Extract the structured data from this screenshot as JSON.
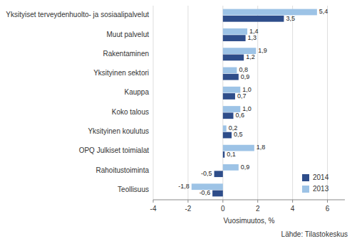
{
  "chart_data": {
    "type": "bar",
    "orientation": "horizontal",
    "categories": [
      "Yksityiset terveydenhuolto- ja sosiaalipalvelut",
      "Muut palvelut",
      "Rakentaminen",
      "Yksityinen sektori",
      "Kauppa",
      "Koko talous",
      "Yksityinen koulutus",
      "OPQ Julkiset toimialat",
      "Rahoitustoiminta",
      "Teollisuus"
    ],
    "series": [
      {
        "name": "2014",
        "color": "#2E4D8A",
        "values": [
          3.5,
          1.3,
          1.2,
          0.9,
          0.7,
          0.6,
          0.5,
          0.1,
          -0.5,
          -0.6
        ],
        "value_labels": [
          "3,5",
          "1,3",
          "1,2",
          "0,9",
          "0,7",
          "0,6",
          "0,5",
          "0,1",
          "-0,5",
          "-0,6"
        ]
      },
      {
        "name": "2013",
        "color": "#9DC3E6",
        "values": [
          5.4,
          1.4,
          1.9,
          0.8,
          1.0,
          1.0,
          0.2,
          1.8,
          0.9,
          -1.8
        ],
        "value_labels": [
          "5,4",
          "1,4",
          "1,9",
          "0,8",
          "1,0",
          "1,0",
          "0,2",
          "1,8",
          "0,9",
          "-1,8"
        ]
      }
    ],
    "xlabel": "Vuosimuutos,  %",
    "xlim": [
      -4,
      7
    ],
    "xticks": [
      -4,
      -2,
      0,
      2,
      4,
      6
    ],
    "grid": true,
    "legend": "lower right",
    "data_labels": true,
    "annotations": [
      "Lähde:  Tilastokeskus"
    ]
  }
}
